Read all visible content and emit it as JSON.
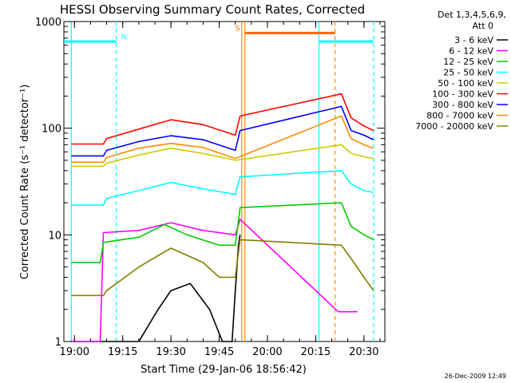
{
  "chart_data": {
    "type": "line",
    "title": "HESSI Observing Summary Count Rates, Corrected",
    "xlabel": "Start Time (29-Jan-06 18:56:42)",
    "ylabel": "Corrected Count Rate (s⁻¹ detector⁻¹)",
    "y_scale": "log",
    "ylim": [
      1,
      1000
    ],
    "y_ticks": [
      {
        "value": 1,
        "label": "1"
      },
      {
        "value": 10,
        "label": "10"
      },
      {
        "value": 100,
        "label": "100"
      },
      {
        "value": 1000,
        "label": "1000"
      }
    ],
    "x_range_minutes": [
      "18:56:42",
      "20:36:30"
    ],
    "x_ticks": [
      "19:00",
      "19:15",
      "19:30",
      "19:45",
      "20:00",
      "20:15",
      "20:30"
    ],
    "legend_title": [
      "Det 1,3,4,5,6,9,",
      "Att 0"
    ],
    "legend_position": "right",
    "series": [
      {
        "name": "3 - 6 keV",
        "color": "#000000",
        "points": [
          [
            "18:59",
            1
          ],
          [
            "19:20",
            1
          ],
          [
            "19:26",
            2
          ],
          [
            "19:30",
            3
          ],
          [
            "19:36",
            3.5
          ],
          [
            "19:42",
            2
          ],
          [
            "19:46",
            1
          ],
          [
            "19:49",
            1
          ],
          [
            "19:50",
            3
          ],
          [
            "19:51",
            8
          ],
          [
            "19:51:30",
            10
          ]
        ]
      },
      {
        "name": "6 - 12 keV",
        "color": "#ff00ff",
        "points": [
          [
            "18:59",
            1
          ],
          [
            "19:08",
            1
          ],
          [
            "19:09",
            10.5
          ],
          [
            "19:20",
            11
          ],
          [
            "19:30",
            13
          ],
          [
            "19:40",
            11
          ],
          [
            "19:50",
            10
          ],
          [
            "19:51:30",
            14
          ],
          [
            "20:22",
            1.9
          ],
          [
            "20:28",
            1.9
          ]
        ]
      },
      {
        "name": "12 - 25 keV",
        "color": "#00cc00",
        "points": [
          [
            "18:59",
            5.5
          ],
          [
            "19:08",
            5.5
          ],
          [
            "19:09",
            8.5
          ],
          [
            "19:20",
            9.5
          ],
          [
            "19:28",
            12.5
          ],
          [
            "19:35",
            10
          ],
          [
            "19:45",
            8
          ],
          [
            "19:50",
            8
          ],
          [
            "19:51:30",
            18
          ],
          [
            "20:23",
            20
          ],
          [
            "20:26",
            12
          ],
          [
            "20:30",
            10
          ],
          [
            "20:33",
            9
          ]
        ]
      },
      {
        "name": "25 - 50 keV",
        "color": "#00ffff",
        "points": [
          [
            "18:59",
            19
          ],
          [
            "19:09",
            19
          ],
          [
            "19:10",
            22
          ],
          [
            "19:20",
            26
          ],
          [
            "19:30",
            31
          ],
          [
            "19:40",
            27
          ],
          [
            "19:50",
            24
          ],
          [
            "19:51:30",
            35
          ],
          [
            "20:23",
            40
          ],
          [
            "20:26",
            30
          ],
          [
            "20:30",
            26
          ],
          [
            "20:33",
            25
          ]
        ]
      },
      {
        "name": "50 - 100 keV",
        "color": "#cccc00",
        "points": [
          [
            "18:59",
            44
          ],
          [
            "19:09",
            44
          ],
          [
            "19:10",
            47
          ],
          [
            "19:20",
            56
          ],
          [
            "19:30",
            65
          ],
          [
            "19:40",
            58
          ],
          [
            "19:50",
            50
          ],
          [
            "20:23",
            70
          ],
          [
            "20:26",
            58
          ],
          [
            "20:30",
            54
          ],
          [
            "20:33",
            52
          ]
        ]
      },
      {
        "name": "100 - 300 keV",
        "color": "#ff0000",
        "points": [
          [
            "18:59",
            71
          ],
          [
            "19:09",
            71
          ],
          [
            "19:10",
            80
          ],
          [
            "19:20",
            98
          ],
          [
            "19:30",
            120
          ],
          [
            "19:40",
            108
          ],
          [
            "19:50",
            86
          ],
          [
            "19:51:30",
            130
          ],
          [
            "20:23",
            210
          ],
          [
            "20:26",
            125
          ],
          [
            "20:30",
            105
          ],
          [
            "20:33",
            95
          ]
        ]
      },
      {
        "name": "300 - 800 keV",
        "color": "#0000ff",
        "points": [
          [
            "18:59",
            55
          ],
          [
            "19:09",
            55
          ],
          [
            "19:10",
            62
          ],
          [
            "19:20",
            75
          ],
          [
            "19:30",
            85
          ],
          [
            "19:40",
            78
          ],
          [
            "19:50",
            62
          ],
          [
            "19:51:30",
            95
          ],
          [
            "20:23",
            160
          ],
          [
            "20:26",
            95
          ],
          [
            "20:30",
            86
          ],
          [
            "20:33",
            78
          ]
        ]
      },
      {
        "name": "800 - 7000 keV",
        "color": "#ff8c00",
        "points": [
          [
            "18:59",
            48
          ],
          [
            "19:09",
            48
          ],
          [
            "19:10",
            53
          ],
          [
            "19:20",
            65
          ],
          [
            "19:30",
            72
          ],
          [
            "19:40",
            66
          ],
          [
            "19:50",
            52
          ],
          [
            "20:23",
            130
          ],
          [
            "20:26",
            80
          ],
          [
            "20:30",
            70
          ],
          [
            "20:33",
            65
          ]
        ]
      },
      {
        "name": "7000 - 20000 keV",
        "color": "#808000",
        "points": [
          [
            "18:59",
            2.7
          ],
          [
            "19:09",
            2.7
          ],
          [
            "19:10",
            3
          ],
          [
            "19:20",
            5
          ],
          [
            "19:30",
            7.5
          ],
          [
            "19:40",
            5.5
          ],
          [
            "19:45",
            4
          ],
          [
            "19:50",
            4
          ],
          [
            "19:51:30",
            9
          ],
          [
            "20:23",
            8
          ],
          [
            "20:26",
            6
          ],
          [
            "20:30",
            4
          ],
          [
            "20:33",
            3
          ]
        ]
      }
    ],
    "annotations": [
      {
        "label": "N",
        "color": "#00ffff",
        "x_start": "18:56:42",
        "x_end": "19:13",
        "level": 650
      },
      {
        "label": "S",
        "color": "#ff6600",
        "x_start": "19:53",
        "x_end": "20:21",
        "level": 780
      },
      {
        "label": "",
        "color": "#00ffff",
        "x_start": "20:16",
        "x_end": "20:33",
        "level": 650
      }
    ],
    "vertical_markers": [
      {
        "x": "18:59",
        "color": "#00ffff",
        "style": "solid"
      },
      {
        "x": "19:13",
        "color": "#00ffff",
        "style": "dashed"
      },
      {
        "x": "19:52",
        "color": "#ff8c00",
        "style": "solid"
      },
      {
        "x": "19:53",
        "color": "#ff8c00",
        "style": "solid"
      },
      {
        "x": "20:16",
        "color": "#00ffff",
        "style": "solid"
      },
      {
        "x": "20:21",
        "color": "#ff8c00",
        "style": "dashed"
      },
      {
        "x": "20:33",
        "color": "#00ffff",
        "style": "dashed"
      }
    ]
  },
  "footer_timestamp": "26-Dec-2009 12:49"
}
